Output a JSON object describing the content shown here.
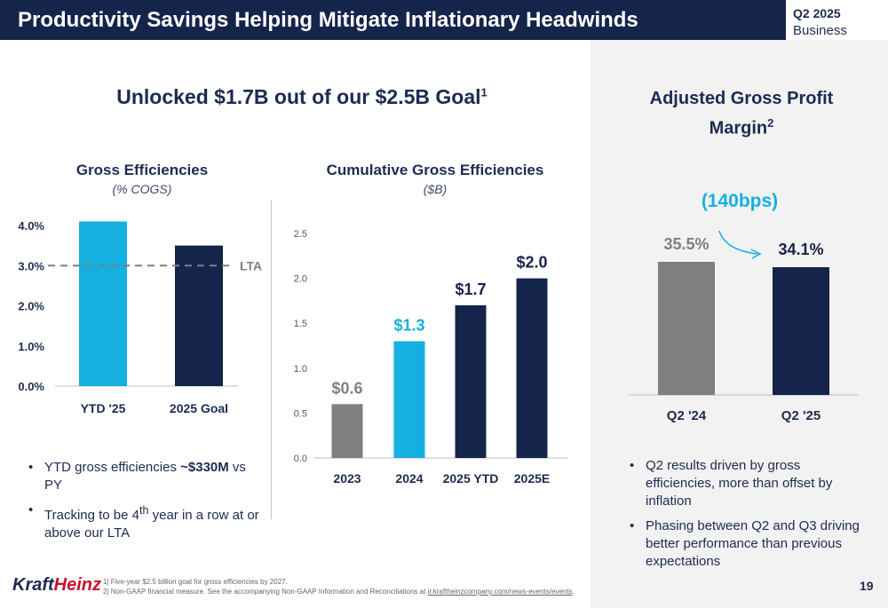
{
  "header": {
    "title": "Productivity Savings Helping Mitigate Inflationary Headwinds",
    "badge_line1": "Q2 2025",
    "badge_line2": "Business Update"
  },
  "main_heading": {
    "text": "Unlocked $1.7B out of our $2.5B Goal",
    "sup": "1"
  },
  "chart_data": [
    {
      "type": "bar",
      "title": "Gross Efficiencies",
      "subtitle": "(% COGS)",
      "categories": [
        "YTD '25",
        "2025 Goal"
      ],
      "values": [
        4.1,
        3.5
      ],
      "ylim": [
        0,
        4.0
      ],
      "yticks": [
        "0.0%",
        "1.0%",
        "2.0%",
        "3.0%",
        "4.0%"
      ],
      "reference_line": {
        "label": "LTA",
        "value": 3.0
      },
      "colors": [
        "#15b0e0",
        "#15244a"
      ]
    },
    {
      "type": "bar",
      "title": "Cumulative Gross Efficiencies",
      "subtitle": "($B)",
      "categories": [
        "2023",
        "2024",
        "2025 YTD",
        "2025E"
      ],
      "values": [
        0.6,
        1.3,
        1.7,
        2.0
      ],
      "value_labels": [
        "$0.6",
        "$1.3",
        "$1.7",
        "$2.0"
      ],
      "ylim": [
        0,
        2.5
      ],
      "yticks": [
        "0.0",
        "0.5",
        "1.0",
        "1.5",
        "2.0",
        "2.5"
      ],
      "colors": [
        "#7f7f7f",
        "#15b0e0",
        "#15244a",
        "#15244a"
      ]
    },
    {
      "type": "bar",
      "title": "Adjusted Gross Profit Margin",
      "categories": [
        "Q2 '24",
        "Q2 '25"
      ],
      "values": [
        35.5,
        34.1
      ],
      "value_labels": [
        "35.5%",
        "34.1%"
      ],
      "annotation": "(140bps)",
      "colors": [
        "#7f7f7f",
        "#15244a"
      ]
    }
  ],
  "gross_eff": {
    "title": "Gross Efficiencies",
    "subtitle": "(% COGS)"
  },
  "cumulative": {
    "title": "Cumulative Gross Efficiencies",
    "subtitle": "($B)"
  },
  "gross_profit": {
    "title_line1": "Adjusted Gross Profit",
    "title_line2": "Margin",
    "sup": "2"
  },
  "left_bullets": {
    "b1_pre": "YTD gross efficiencies ",
    "b1_bold": "~$330M",
    "b1_post": " vs PY",
    "b2_pre": "Tracking to be 4",
    "b2_sup": "th",
    "b2_post": " year in a row at or above our LTA"
  },
  "right_bullets": [
    "Q2 results driven by gross efficiencies, more than offset by inflation",
    "Phasing between Q2 and Q3 driving better performance than previous expectations"
  ],
  "footer": {
    "logo_kraft": "Kraft",
    "logo_heinz": "Heinz",
    "note1": "1| Five-year $2.5 billion goal for gross efficiencies by 2027.",
    "note2_pre": "2| Non-GAAP financial measure. See the accompanying Non-GAAP Information and Reconciliations at ",
    "note2_link": "ir.kraftheinzcompany.com/news-events/events",
    "note2_post": ".",
    "page_number": "19"
  }
}
